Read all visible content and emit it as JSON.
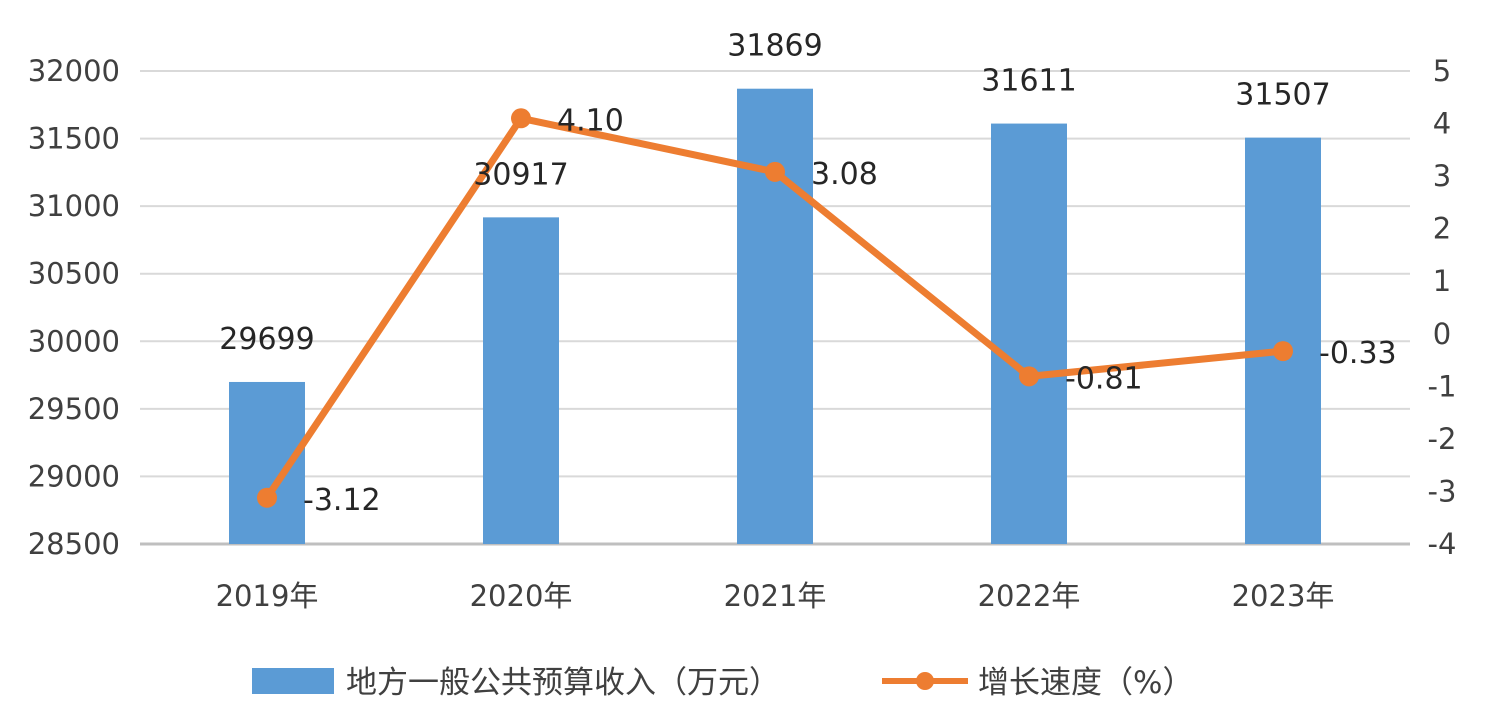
{
  "chart_data": {
    "type": "bar",
    "categories": [
      "2019年",
      "2020年",
      "2021年",
      "2022年",
      "2023年"
    ],
    "series": [
      {
        "name": "地方一般公共预算收入（万元）",
        "type": "bar",
        "axis": "left",
        "color": "#5B9BD5",
        "values": [
          29699,
          30917,
          31869,
          31611,
          31507
        ],
        "labels": [
          "29699",
          "30917",
          "31869",
          "31611",
          "31507"
        ]
      },
      {
        "name": "增长速度（%）",
        "type": "line",
        "axis": "right",
        "color": "#ED7D31",
        "values": [
          -3.12,
          4.1,
          3.08,
          -0.81,
          -0.33
        ],
        "labels": [
          "-3.12",
          "4.10",
          "3.08",
          "-0.81",
          "-0.33"
        ]
      }
    ],
    "y_left": {
      "min": 28500,
      "max": 32000,
      "ticks": [
        28500,
        29000,
        29500,
        30000,
        30500,
        31000,
        31500,
        32000
      ],
      "tick_labels": [
        "28500",
        "29000",
        "29500",
        "30000",
        "30500",
        "31000",
        "31500",
        "32000"
      ]
    },
    "y_right": {
      "min": -4,
      "max": 5,
      "ticks": [
        -4,
        -3,
        -2,
        -1,
        0,
        1,
        2,
        3,
        4,
        5
      ],
      "tick_labels": [
        "-4",
        "-3",
        "-2",
        "-1",
        "0",
        "1",
        "2",
        "3",
        "4",
        "5"
      ]
    },
    "grid": true,
    "legend_position": "bottom",
    "title": "",
    "xlabel": "",
    "ylabel": ""
  }
}
